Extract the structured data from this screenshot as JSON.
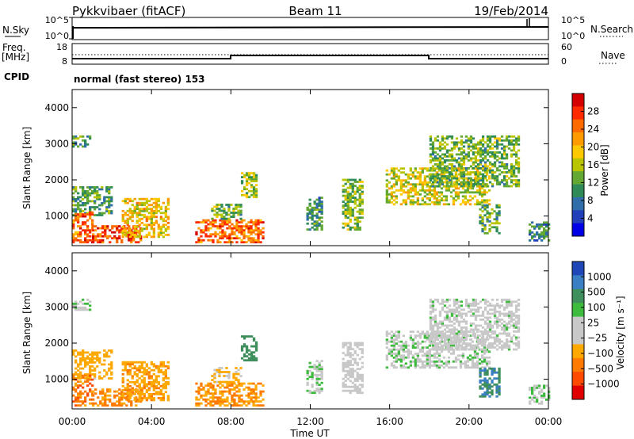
{
  "header": {
    "site": "Pykkvibaer (fitACF)",
    "beam": "Beam 11",
    "date": "19/Feb/2014"
  },
  "strip": {
    "nsky_label": "N.Sky",
    "nsky_ticks": [
      "10^5",
      "10^0"
    ],
    "nsearch_label": "N.Search",
    "nsearch_ticks": [
      "10^5",
      "10^0"
    ],
    "freq_label_1": "Freq.",
    "freq_label_2": "[MHz]",
    "freq_ticks": [
      "18",
      "8"
    ],
    "nave_label": "Nave",
    "nave_ticks": [
      "60",
      "0"
    ],
    "cpid_label": "CPID",
    "cpid_text": "normal (fast stereo) 153"
  },
  "axes": {
    "ylabel": "Slant Range [km]",
    "yticks": [
      "4000",
      "3000",
      "2000",
      "1000"
    ],
    "ytick_values": [
      4000,
      3000,
      2000,
      1000
    ],
    "ylim": [
      180,
      4500
    ],
    "xlabel": "Time UT",
    "xticks": [
      "00:00",
      "04:00",
      "08:00",
      "12:00",
      "16:00",
      "20:00",
      "00:00"
    ],
    "xtick_hours": [
      0,
      4,
      8,
      12,
      16,
      20,
      24
    ]
  },
  "colorbars": {
    "power": {
      "label": "Power [dB]",
      "ticks": [
        "28",
        "24",
        "20",
        "16",
        "12",
        "8",
        "4"
      ],
      "colors": [
        "#d40000",
        "#ff2a00",
        "#ff6a00",
        "#ff9b00",
        "#ffc800",
        "#b8c400",
        "#63a832",
        "#2e8b57",
        "#2f6ea8",
        "#203fb8",
        "#0000e6"
      ]
    },
    "velocity": {
      "label": "Velocity [m s⁻¹]",
      "ticks": [
        "1000",
        "500",
        "100",
        "25",
        "−25",
        "−100",
        "−500",
        "−1000"
      ],
      "colors": [
        "#2047b8",
        "#3a7fc4",
        "#3f8f5c",
        "#3cbb3c",
        "#c8c8c8",
        "#c8c8c8",
        "#ffa800",
        "#ff7a00",
        "#ff4a00",
        "#e00000"
      ]
    }
  },
  "chart_data": {
    "type": "heatmap",
    "x_unit": "hours UT",
    "y_unit": "km",
    "xlim": [
      0,
      24
    ],
    "ylim": [
      180,
      4500
    ],
    "regions": [
      {
        "t0": 0.0,
        "t1": 0.9,
        "r0": 2900,
        "r1": 3200,
        "power": 10,
        "velocity": 20
      },
      {
        "t0": 0.0,
        "t1": 2.0,
        "r0": 1000,
        "r1": 1800,
        "power": 10,
        "velocity": -150
      },
      {
        "t0": 0.0,
        "t1": 1.0,
        "r0": 250,
        "r1": 1100,
        "power": 24,
        "velocity": -400
      },
      {
        "t0": 1.0,
        "t1": 3.5,
        "r0": 250,
        "r1": 700,
        "power": 26,
        "velocity": -350
      },
      {
        "t0": 2.5,
        "t1": 4.8,
        "r0": 400,
        "r1": 1500,
        "power": 18,
        "velocity": -250
      },
      {
        "t0": 6.2,
        "t1": 9.6,
        "r0": 250,
        "r1": 900,
        "power": 24,
        "velocity": -300
      },
      {
        "t0": 7.0,
        "t1": 8.5,
        "r0": 900,
        "r1": 1300,
        "power": 12,
        "velocity": -120
      },
      {
        "t0": 8.5,
        "t1": 9.3,
        "r0": 1500,
        "r1": 2200,
        "power": 14,
        "velocity": 200
      },
      {
        "t0": 11.8,
        "t1": 12.6,
        "r0": 600,
        "r1": 1500,
        "power": 9,
        "velocity": 20
      },
      {
        "t0": 13.6,
        "t1": 14.6,
        "r0": 600,
        "r1": 2000,
        "power": 13,
        "velocity": -50
      },
      {
        "t0": 15.8,
        "t1": 21.0,
        "r0": 1300,
        "r1": 2300,
        "power": 16,
        "velocity": 10
      },
      {
        "t0": 18.0,
        "t1": 22.5,
        "r0": 1800,
        "r1": 3200,
        "power": 12,
        "velocity": 0
      },
      {
        "t0": 20.5,
        "t1": 21.5,
        "r0": 500,
        "r1": 1300,
        "power": 11,
        "velocity": 300
      },
      {
        "t0": 23.0,
        "t1": 24.0,
        "r0": 300,
        "r1": 800,
        "power": 9,
        "velocity": 15
      }
    ]
  }
}
